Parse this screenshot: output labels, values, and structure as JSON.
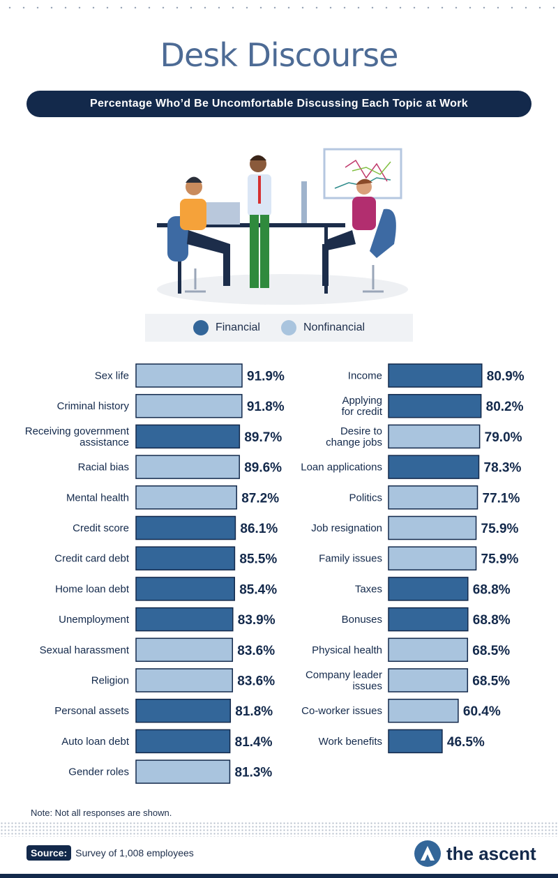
{
  "title": "Desk Discourse",
  "subtitle": "Percentage Who’d Be Uncomfortable Discussing Each Topic at Work",
  "legend": {
    "financial": "Financial",
    "nonfinancial": "Nonfinancial"
  },
  "colors": {
    "financial": "#336699",
    "nonfinancial": "#a9c4de",
    "navy": "#13294b",
    "title": "#4d6b95"
  },
  "note": "Note: Not all responses are shown.",
  "source": {
    "label": "Source:",
    "text": "Survey of 1,008 employees"
  },
  "brand": {
    "name": "the ascent",
    "icon": "ascent-logo-icon"
  },
  "chart_data": {
    "type": "bar",
    "orientation": "horizontal",
    "unit": "%",
    "columns": [
      {
        "items": [
          {
            "label": [
              "Sex life"
            ],
            "value": 91.9,
            "category": "nonfinancial"
          },
          {
            "label": [
              "Criminal history"
            ],
            "value": 91.8,
            "category": "nonfinancial"
          },
          {
            "label": [
              "Receiving government",
              "assistance"
            ],
            "value": 89.7,
            "category": "financial"
          },
          {
            "label": [
              "Racial bias"
            ],
            "value": 89.6,
            "category": "nonfinancial"
          },
          {
            "label": [
              "Mental health"
            ],
            "value": 87.2,
            "category": "nonfinancial"
          },
          {
            "label": [
              "Credit score"
            ],
            "value": 86.1,
            "category": "financial"
          },
          {
            "label": [
              "Credit card debt"
            ],
            "value": 85.5,
            "category": "financial"
          },
          {
            "label": [
              "Home loan debt"
            ],
            "value": 85.4,
            "category": "financial"
          },
          {
            "label": [
              "Unemployment"
            ],
            "value": 83.9,
            "category": "financial"
          },
          {
            "label": [
              "Sexual harassment"
            ],
            "value": 83.6,
            "category": "nonfinancial"
          },
          {
            "label": [
              "Religion"
            ],
            "value": 83.6,
            "category": "nonfinancial"
          },
          {
            "label": [
              "Personal assets"
            ],
            "value": 81.8,
            "category": "financial"
          },
          {
            "label": [
              "Auto loan debt"
            ],
            "value": 81.4,
            "category": "financial"
          },
          {
            "label": [
              "Gender roles"
            ],
            "value": 81.3,
            "category": "nonfinancial"
          }
        ]
      },
      {
        "items": [
          {
            "label": [
              "Income"
            ],
            "value": 80.9,
            "category": "financial"
          },
          {
            "label": [
              "Applying",
              "for credit"
            ],
            "value": 80.2,
            "category": "financial"
          },
          {
            "label": [
              "Desire to",
              "change jobs"
            ],
            "value": 79.0,
            "category": "nonfinancial"
          },
          {
            "label": [
              "Loan applications"
            ],
            "value": 78.3,
            "category": "financial"
          },
          {
            "label": [
              "Politics"
            ],
            "value": 77.1,
            "category": "nonfinancial"
          },
          {
            "label": [
              "Job resignation"
            ],
            "value": 75.9,
            "category": "nonfinancial"
          },
          {
            "label": [
              "Family issues"
            ],
            "value": 75.9,
            "category": "nonfinancial"
          },
          {
            "label": [
              "Taxes"
            ],
            "value": 68.8,
            "category": "financial"
          },
          {
            "label": [
              "Bonuses"
            ],
            "value": 68.8,
            "category": "financial"
          },
          {
            "label": [
              "Physical health"
            ],
            "value": 68.5,
            "category": "nonfinancial"
          },
          {
            "label": [
              "Company leader",
              "issues"
            ],
            "value": 68.5,
            "category": "nonfinancial"
          },
          {
            "label": [
              "Co-worker issues"
            ],
            "value": 60.4,
            "category": "nonfinancial"
          },
          {
            "label": [
              "Work benefits"
            ],
            "value": 46.5,
            "category": "financial"
          }
        ]
      }
    ]
  }
}
